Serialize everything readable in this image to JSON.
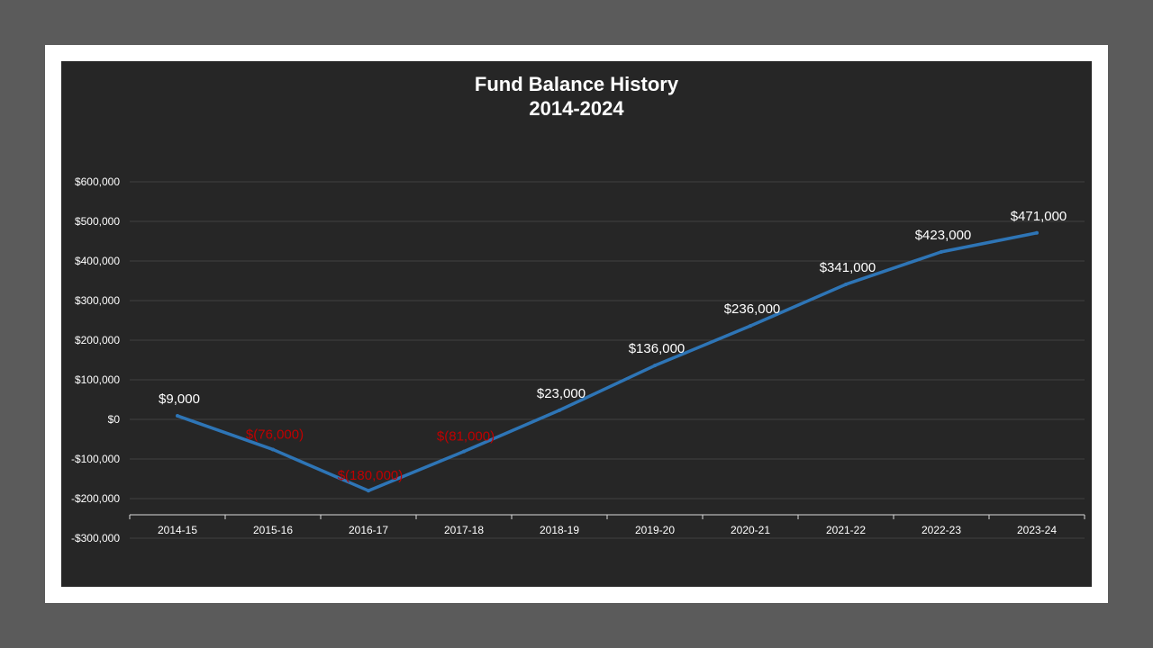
{
  "chart_data": {
    "type": "line",
    "title": "Fund Balance History",
    "subtitle": "2014-2024",
    "categories": [
      "2014-15",
      "2015-16",
      "2016-17",
      "2017-18",
      "2018-19",
      "2019-20",
      "2020-21",
      "2021-22",
      "2022-23",
      "2023-24"
    ],
    "series": [
      {
        "values": [
          9000,
          -76000,
          -180000,
          -81000,
          23000,
          136000,
          236000,
          341000,
          423000,
          471000
        ],
        "data_labels": [
          "$9,000",
          "$(76,000)",
          "$(180,000)",
          "$(81,000)",
          "$23,000",
          "$136,000",
          "$236,000",
          "$341,000",
          "$423,000",
          "$471,000"
        ]
      }
    ],
    "ylim": [
      -300000,
      600000
    ],
    "y_ticks": [
      600000,
      500000,
      400000,
      300000,
      200000,
      100000,
      0,
      -100000,
      -200000,
      -300000
    ],
    "y_tick_labels": [
      "$600,000",
      "$500,000",
      "$400,000",
      "$300,000",
      "$200,000",
      "$100,000",
      "$0",
      "-$100,000",
      "-$200,000",
      "-$300,000"
    ],
    "grid": true,
    "legend": "none",
    "colors": {
      "line": "#2e75b6",
      "positive_label": "#ffffff",
      "negative_label": "#c00000",
      "gridline": "#404040",
      "axis": "#d9d9d9",
      "plot_background": "#262626",
      "frame": "#ffffff",
      "outer_background": "#5b5b5b"
    }
  }
}
